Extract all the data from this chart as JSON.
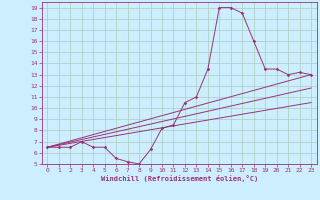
{
  "xlabel": "Windchill (Refroidissement éolien,°C)",
  "bg_color": "#cceeff",
  "grid_color": "#aaccbb",
  "line_color": "#993377",
  "xlim": [
    -0.5,
    23.5
  ],
  "ylim": [
    5,
    19.5
  ],
  "xticks": [
    0,
    1,
    2,
    3,
    4,
    5,
    6,
    7,
    8,
    9,
    10,
    11,
    12,
    13,
    14,
    15,
    16,
    17,
    18,
    19,
    20,
    21,
    22,
    23
  ],
  "yticks": [
    5,
    6,
    7,
    8,
    9,
    10,
    11,
    12,
    13,
    14,
    15,
    16,
    17,
    18,
    19
  ],
  "series": [
    {
      "x": [
        0,
        1,
        2,
        3,
        4,
        5,
        6,
        7,
        8,
        9,
        10,
        11,
        12,
        13,
        14,
        15,
        16,
        17,
        18,
        19,
        20,
        21,
        22,
        23
      ],
      "y": [
        6.5,
        6.5,
        6.5,
        7.0,
        6.5,
        6.5,
        5.5,
        5.2,
        5.0,
        6.3,
        8.2,
        8.5,
        10.5,
        11.0,
        13.5,
        19.0,
        19.0,
        18.5,
        16.0,
        13.5,
        13.5,
        13.0,
        13.2,
        13.0
      ]
    },
    {
      "x": [
        0,
        23
      ],
      "y": [
        6.5,
        13.0
      ]
    },
    {
      "x": [
        0,
        23
      ],
      "y": [
        6.5,
        11.8
      ]
    },
    {
      "x": [
        0,
        23
      ],
      "y": [
        6.5,
        10.5
      ]
    }
  ]
}
